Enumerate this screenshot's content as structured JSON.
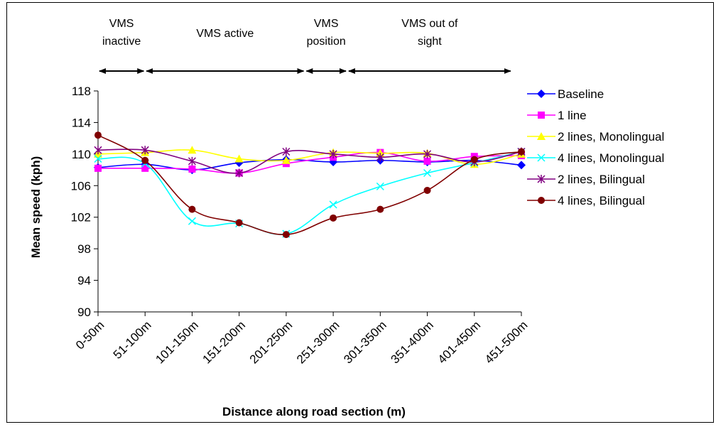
{
  "chart_data": {
    "type": "line",
    "title": "",
    "xlabel": "Distance along road section (m)",
    "ylabel": "Mean speed (kph)",
    "ylim": [
      90,
      118
    ],
    "yticks": [
      90,
      94,
      98,
      102,
      106,
      110,
      114,
      118
    ],
    "categories": [
      "0-50m",
      "51-100m",
      "101-150m",
      "151-200m",
      "201-250m",
      "251-300m",
      "301-350m",
      "351-400m",
      "401-450m",
      "451-500m"
    ],
    "grid": false,
    "legend_position": "right",
    "regions": [
      {
        "label": "VMS inactive",
        "lines": [
          "VMS",
          "inactive"
        ],
        "from": 0,
        "to": 1
      },
      {
        "label": "VMS active",
        "lines": [
          "VMS active"
        ],
        "from": 1,
        "to": 4.4
      },
      {
        "label": "VMS position",
        "lines": [
          "VMS",
          "position"
        ],
        "from": 4.4,
        "to": 5.3
      },
      {
        "label": "VMS out of sight",
        "lines": [
          "VMS out of",
          "sight"
        ],
        "from": 5.3,
        "to": 8.8
      }
    ],
    "series": [
      {
        "name": "Baseline",
        "color": "#0000ff",
        "marker": "diamond",
        "values": [
          108.3,
          108.7,
          108.0,
          108.9,
          109.3,
          109.0,
          109.2,
          109.0,
          109.2,
          108.6
        ]
      },
      {
        "name": "1 line",
        "color": "#ff00ff",
        "marker": "square",
        "values": [
          108.2,
          108.2,
          108.1,
          107.6,
          108.8,
          109.6,
          110.2,
          109.1,
          109.7,
          109.8
        ]
      },
      {
        "name": "2 lines, Monolingual",
        "color": "#ffff00",
        "marker": "triangle",
        "values": [
          110.0,
          110.2,
          110.5,
          109.4,
          109.2,
          110.2,
          110.1,
          110.1,
          108.7,
          110.0
        ]
      },
      {
        "name": "4 lines, Monolingual",
        "color": "#00ffff",
        "marker": "x",
        "values": [
          109.4,
          108.8,
          101.5,
          101.2,
          99.9,
          103.6,
          105.9,
          107.6,
          108.9,
          110.3
        ]
      },
      {
        "name": "2 lines, Bilingual",
        "color": "#800080",
        "marker": "star",
        "values": [
          110.5,
          110.5,
          109.1,
          107.6,
          110.3,
          110.0,
          109.6,
          110.0,
          109.0,
          110.3
        ]
      },
      {
        "name": "4 lines, Bilingual",
        "color": "#800000",
        "marker": "circle",
        "values": [
          112.4,
          109.2,
          103.0,
          101.3,
          99.8,
          101.9,
          103.0,
          105.4,
          109.3,
          110.3
        ]
      }
    ]
  }
}
